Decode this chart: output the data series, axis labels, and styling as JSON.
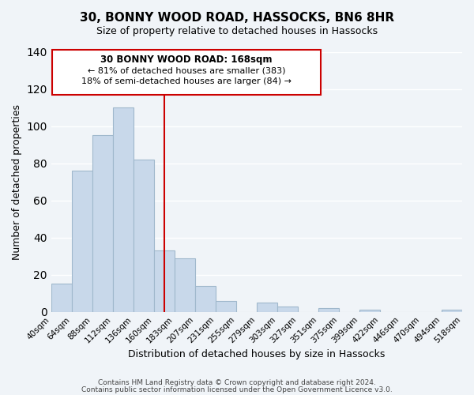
{
  "title": "30, BONNY WOOD ROAD, HASSOCKS, BN6 8HR",
  "subtitle": "Size of property relative to detached houses in Hassocks",
  "xlabel": "Distribution of detached houses by size in Hassocks",
  "ylabel": "Number of detached properties",
  "bar_color": "#c8d8ea",
  "bar_edge_color": "#a0b8cc",
  "background_color": "#f0f4f8",
  "grid_color": "white",
  "bin_edges": [
    "40sqm",
    "64sqm",
    "88sqm",
    "112sqm",
    "136sqm",
    "160sqm",
    "183sqm",
    "207sqm",
    "231sqm",
    "255sqm",
    "279sqm",
    "303sqm",
    "327sqm",
    "351sqm",
    "375sqm",
    "399sqm",
    "422sqm",
    "446sqm",
    "470sqm",
    "494sqm",
    "518sqm"
  ],
  "bar_heights": [
    15,
    76,
    95,
    110,
    82,
    33,
    29,
    14,
    6,
    0,
    5,
    3,
    0,
    2,
    0,
    1,
    0,
    0,
    0,
    1
  ],
  "ylim": [
    0,
    140
  ],
  "yticks": [
    0,
    20,
    40,
    60,
    80,
    100,
    120,
    140
  ],
  "vline_x": 5.5,
  "vline_color": "#cc0000",
  "annotation_title": "30 BONNY WOOD ROAD: 168sqm",
  "annotation_line1": "← 81% of detached houses are smaller (383)",
  "annotation_line2": "18% of semi-detached houses are larger (84) →",
  "annotation_box_color": "white",
  "annotation_box_edge": "#cc0000",
  "footer1": "Contains HM Land Registry data © Crown copyright and database right 2024.",
  "footer2": "Contains public sector information licensed under the Open Government Licence v3.0."
}
